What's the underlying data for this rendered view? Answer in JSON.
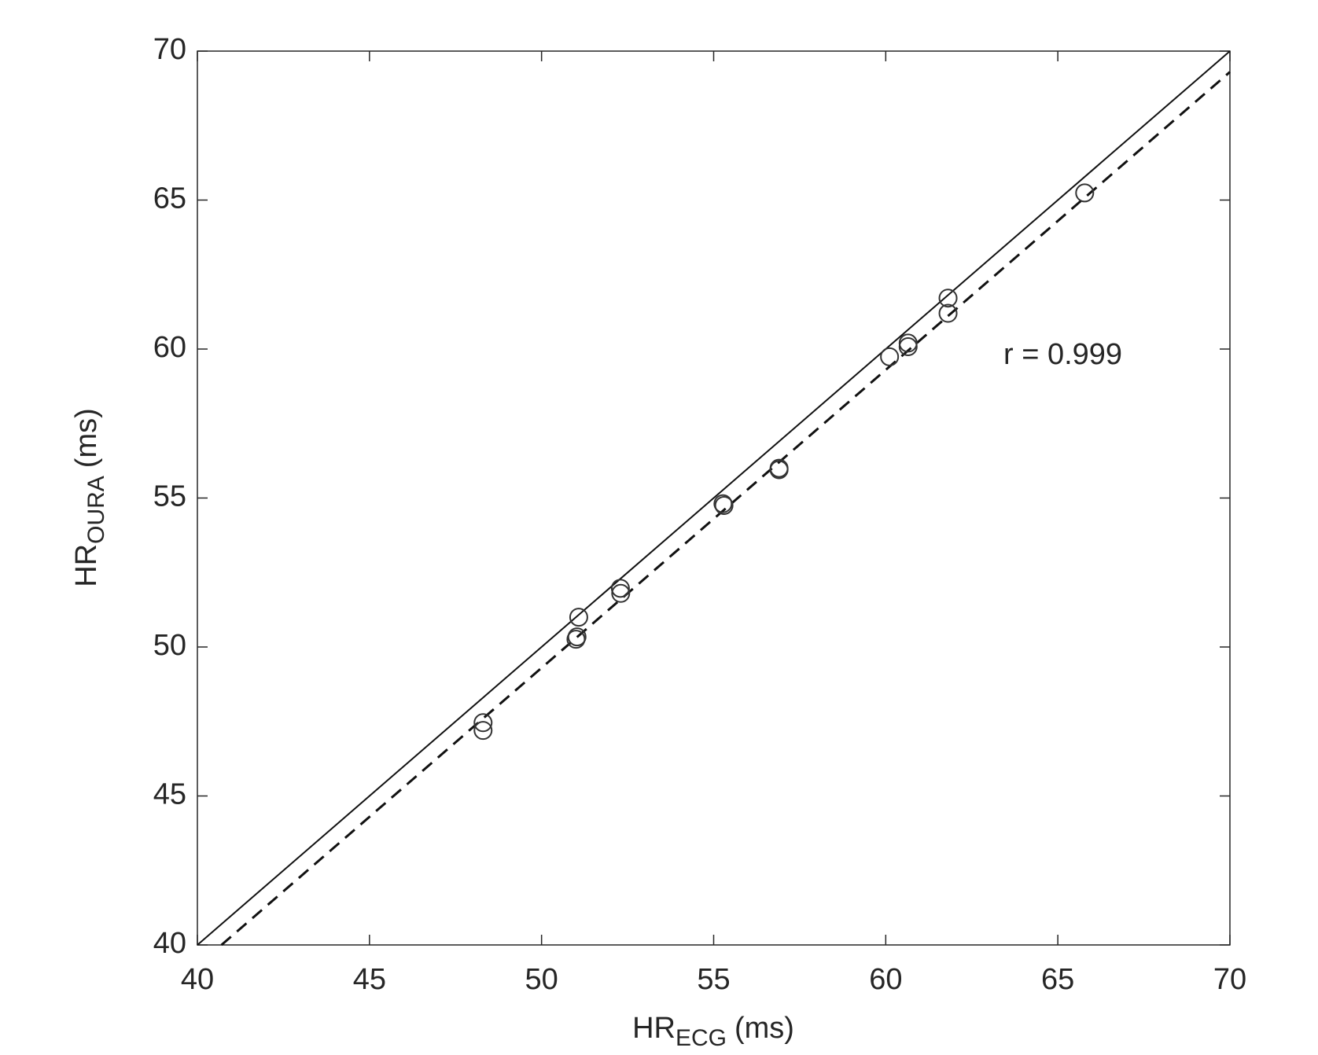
{
  "chart_data": {
    "type": "scatter",
    "x": [
      48.3,
      48.3,
      51.08,
      51.03,
      51.0,
      52.29,
      52.3,
      55.27,
      55.3,
      56.9,
      56.9,
      60.11,
      60.65,
      60.65,
      61.81,
      61.81,
      65.78
    ],
    "values": [
      47.46,
      47.2,
      51.0,
      50.34,
      50.26,
      51.97,
      51.8,
      54.81,
      54.75,
      56.0,
      55.95,
      59.74,
      60.2,
      60.08,
      61.71,
      61.2,
      65.24
    ],
    "marker_color": "#333333",
    "lines": [
      {
        "x": [
          40,
          70
        ],
        "y": [
          40,
          70
        ],
        "style": "solid"
      },
      {
        "x": [
          40.7,
          70
        ],
        "y": [
          40,
          69.3
        ],
        "style": "dashed"
      }
    ],
    "xlim": [
      40,
      70
    ],
    "xticks": [
      40,
      45,
      50,
      55,
      60,
      65,
      70
    ],
    "ylim": [
      40,
      70
    ],
    "yticks": [
      40,
      45,
      50,
      55,
      60,
      65,
      70
    ],
    "x_label": {
      "main": "HR",
      "sub": "ECG",
      "unit": "(ms)"
    },
    "y_label": {
      "main": "HR",
      "sub": "OURA",
      "unit": "(ms)"
    },
    "annotation": "r = 0.999",
    "grid": false
  }
}
